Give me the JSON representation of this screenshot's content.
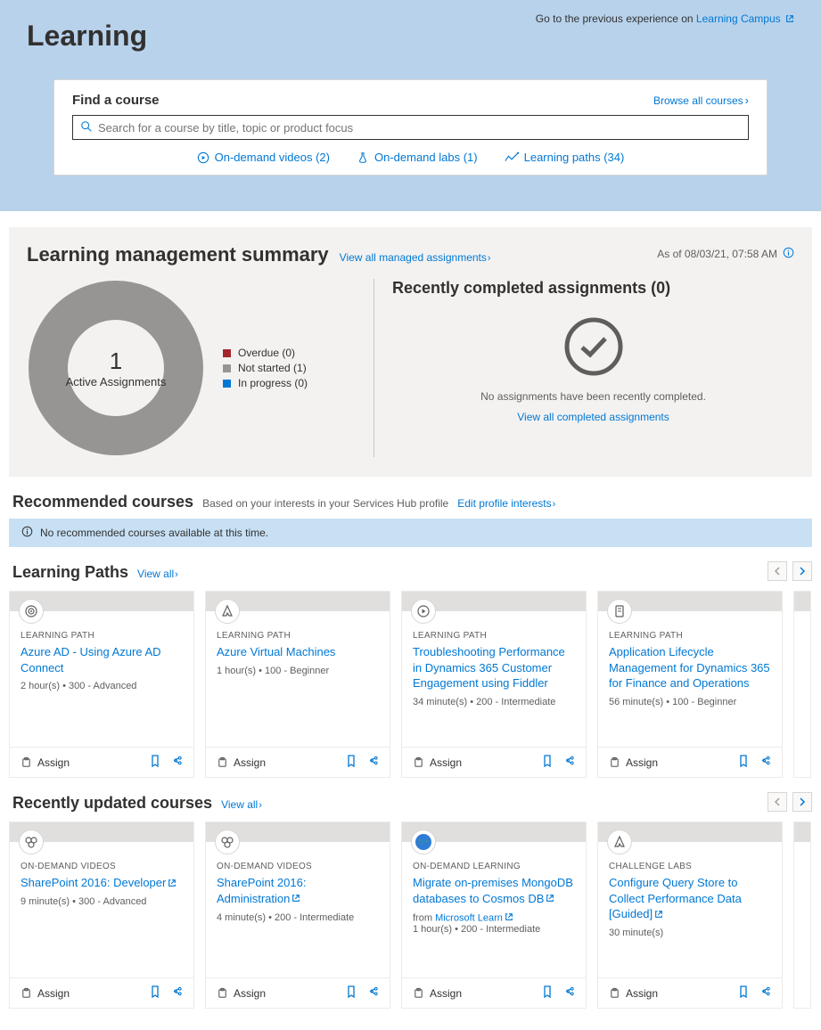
{
  "hero": {
    "title": "Learning",
    "prev_text": "Go to the previous experience on ",
    "prev_link": "Learning Campus"
  },
  "find": {
    "heading": "Find a course",
    "browse": "Browse all courses",
    "placeholder": "Search for a course by title, topic or product focus",
    "links": [
      {
        "label": "On-demand videos (2)",
        "icon": "play"
      },
      {
        "label": "On-demand labs (1)",
        "icon": "flask"
      },
      {
        "label": "Learning paths (34)",
        "icon": "path"
      }
    ]
  },
  "lms": {
    "heading": "Learning management summary",
    "view_all": "View all managed assignments",
    "as_of": "As of 08/03/21, 07:58 AM",
    "donut": {
      "count": "1",
      "label": "Active Assignments",
      "ring_color": "#979593",
      "bg": "#f3f2f1"
    },
    "legend": [
      {
        "label": "Overdue (0)",
        "color": "#a4262c"
      },
      {
        "label": "Not started (1)",
        "color": "#979593"
      },
      {
        "label": "In progress (0)",
        "color": "#0078d4"
      }
    ],
    "recent": {
      "heading": "Recently completed assignments (0)",
      "empty": "No assignments have been recently completed.",
      "link": "View all completed assignments"
    }
  },
  "recommended": {
    "heading": "Recommended courses",
    "sub": "Based on your interests in your Services Hub profile",
    "edit": "Edit profile interests",
    "banner": "No recommended courses available at this time."
  },
  "paths": {
    "heading": "Learning Paths",
    "view_all": "View all",
    "cards": [
      {
        "cat": "LEARNING PATH",
        "title": "Azure AD - Using Azure AD Connect",
        "meta": "2 hour(s)  •  300 - Advanced",
        "icon": "target"
      },
      {
        "cat": "LEARNING PATH",
        "title": "Azure Virtual Machines",
        "meta": "1 hour(s)  •  100 - Beginner",
        "icon": "azure"
      },
      {
        "cat": "LEARNING PATH",
        "title": "Troubleshooting Performance in Dynamics 365 Customer Engagement using Fiddler",
        "meta": "34 minute(s)  •  200 - Intermediate",
        "icon": "play2"
      },
      {
        "cat": "LEARNING PATH",
        "title": "Application Lifecycle Management for Dynamics 365 for Finance and Operations",
        "meta": "56 minute(s)  •  100 - Beginner",
        "icon": "doc"
      }
    ],
    "assign": "Assign"
  },
  "recent": {
    "heading": "Recently updated courses",
    "view_all": "View all",
    "cards": [
      {
        "cat": "ON-DEMAND VIDEOS",
        "title": "SharePoint 2016: Developer",
        "meta": "9 minute(s)  •  300 - Advanced",
        "ext": true,
        "icon": "sp"
      },
      {
        "cat": "ON-DEMAND VIDEOS",
        "title": "SharePoint 2016: Administration",
        "meta": "4 minute(s)  •  200 - Intermediate",
        "ext": true,
        "icon": "sp"
      },
      {
        "cat": "ON-DEMAND LEARNING",
        "title": "Migrate on-premises MongoDB databases to Cosmos DB",
        "from": "Microsoft Learn",
        "meta": "1 hour(s)  •  200 - Intermediate",
        "ext": true,
        "icon": "globe"
      },
      {
        "cat": "CHALLENGE LABS",
        "title": "Configure Query Store to Collect Performance Data [Guided]",
        "meta": "30 minute(s)",
        "ext": true,
        "icon": "azure"
      }
    ],
    "assign": "Assign"
  },
  "colors": {
    "link": "#0078d4",
    "hero_bg": "#b8d2ec",
    "panel_bg": "#f3f2f1",
    "info_bg": "#c7e0f4"
  }
}
